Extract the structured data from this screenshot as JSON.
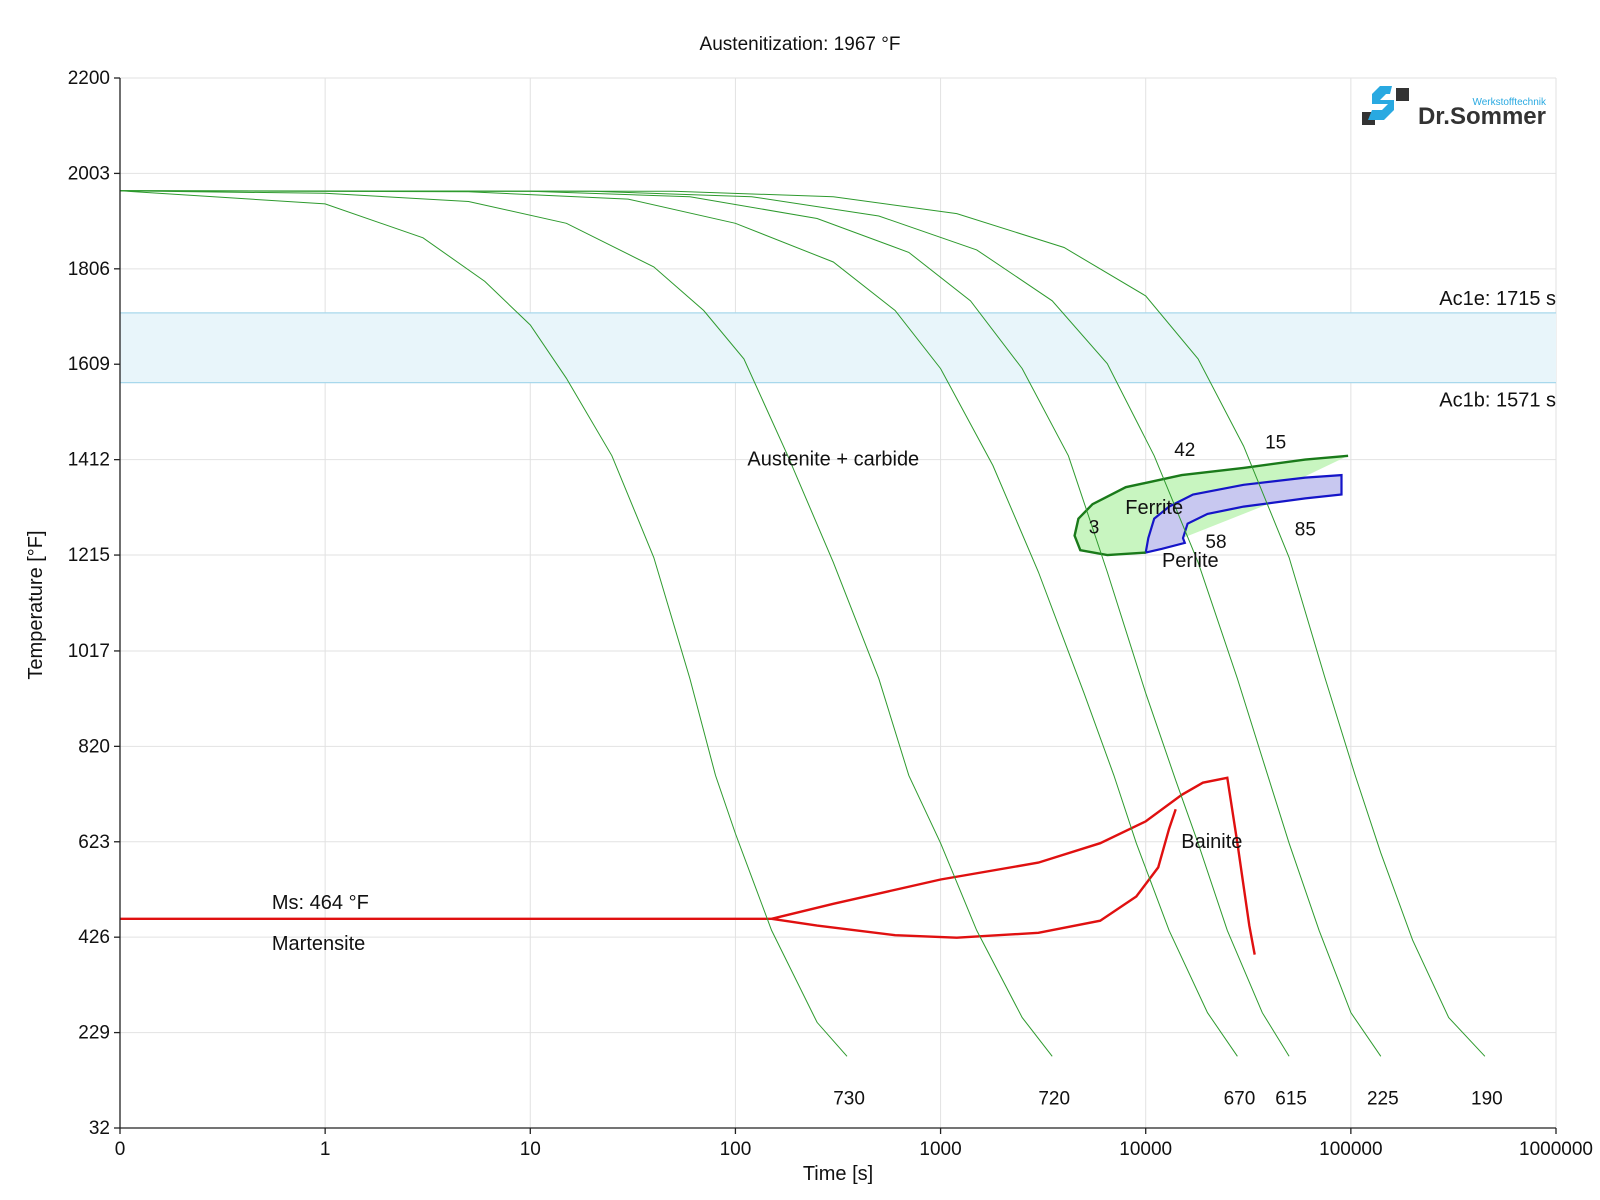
{
  "chart_data": {
    "type": "line",
    "title": "Austenitization: 1967 °F",
    "xlabel": "Time [s]",
    "ylabel": "Temperature [°F]",
    "x_scale": "log",
    "x_ticks": [
      {
        "value": 0.1,
        "label": "0"
      },
      {
        "value": 1,
        "label": "1"
      },
      {
        "value": 10,
        "label": "10"
      },
      {
        "value": 100,
        "label": "100"
      },
      {
        "value": 1000,
        "label": "1000"
      },
      {
        "value": 10000,
        "label": "10000"
      },
      {
        "value": 100000,
        "label": "100000"
      },
      {
        "value": 1000000,
        "label": "1000000"
      }
    ],
    "xlim": [
      0.1,
      1000000
    ],
    "ylim": [
      32,
      2200
    ],
    "y_ticks": [
      32,
      229,
      426,
      623,
      820,
      1017,
      1215,
      1412,
      1609,
      1806,
      2003,
      2200
    ],
    "grid": true,
    "logo": {
      "text": "Dr.Sommer",
      "subtext": "Werkstofftechnik",
      "colors": [
        "#29a9e1",
        "#333333"
      ]
    },
    "colors": {
      "cooling": "#2e9a2e",
      "ferrite": "#1a7a1a",
      "ferrite_fill": "#c8f5c0",
      "perlite": "#1515c8",
      "perlite_fill": "#c8c8f0",
      "bainite": "#e01010",
      "martensite": "#e01010",
      "ac_band": "#e8f5fa",
      "ac_line": "#a8d8ec"
    },
    "ac_band": {
      "ac1e": {
        "value": 1715,
        "label": "Ac1e: 1715 s"
      },
      "ac1b": {
        "value": 1571,
        "label": "Ac1b: 1571 s"
      }
    },
    "ms": {
      "value": 464,
      "label": "Ms: 464 °F"
    },
    "cooling_curves": [
      {
        "end_label": "730",
        "points": [
          [
            0.1,
            1967
          ],
          [
            1,
            1940
          ],
          [
            3,
            1870
          ],
          [
            6,
            1780
          ],
          [
            10,
            1690
          ],
          [
            15,
            1580
          ],
          [
            25,
            1420
          ],
          [
            40,
            1210
          ],
          [
            60,
            960
          ],
          [
            80,
            760
          ],
          [
            100,
            640
          ],
          [
            150,
            440
          ],
          [
            250,
            250
          ],
          [
            350,
            180
          ]
        ]
      },
      {
        "end_label": "720",
        "points": [
          [
            0.1,
            1967
          ],
          [
            1,
            1962
          ],
          [
            5,
            1945
          ],
          [
            15,
            1900
          ],
          [
            40,
            1810
          ],
          [
            70,
            1720
          ],
          [
            110,
            1620
          ],
          [
            180,
            1420
          ],
          [
            300,
            1200
          ],
          [
            500,
            960
          ],
          [
            700,
            760
          ],
          [
            1000,
            620
          ],
          [
            1500,
            440
          ],
          [
            2500,
            260
          ],
          [
            3500,
            180
          ]
        ]
      },
      {
        "end_label": "670",
        "points": [
          [
            0.1,
            1967
          ],
          [
            5,
            1965
          ],
          [
            30,
            1950
          ],
          [
            100,
            1900
          ],
          [
            300,
            1820
          ],
          [
            600,
            1720
          ],
          [
            1000,
            1600
          ],
          [
            1800,
            1400
          ],
          [
            3000,
            1180
          ],
          [
            5000,
            930
          ],
          [
            7000,
            760
          ],
          [
            9000,
            620
          ],
          [
            13000,
            440
          ],
          [
            20000,
            270
          ],
          [
            28000,
            180
          ]
        ]
      },
      {
        "end_label": "615",
        "points": [
          [
            0.1,
            1967
          ],
          [
            10,
            1966
          ],
          [
            60,
            1955
          ],
          [
            250,
            1910
          ],
          [
            700,
            1840
          ],
          [
            1400,
            1740
          ],
          [
            2500,
            1600
          ],
          [
            4200,
            1420
          ],
          [
            6500,
            1180
          ],
          [
            10000,
            930
          ],
          [
            14000,
            750
          ],
          [
            18000,
            620
          ],
          [
            25000,
            440
          ],
          [
            37000,
            270
          ],
          [
            50000,
            180
          ]
        ]
      },
      {
        "end_label": "225",
        "points": [
          [
            0.1,
            1967
          ],
          [
            20,
            1966
          ],
          [
            120,
            1955
          ],
          [
            500,
            1915
          ],
          [
            1500,
            1845
          ],
          [
            3500,
            1740
          ],
          [
            6500,
            1610
          ],
          [
            11000,
            1420
          ],
          [
            18000,
            1200
          ],
          [
            28000,
            960
          ],
          [
            38000,
            780
          ],
          [
            50000,
            620
          ],
          [
            70000,
            440
          ],
          [
            100000,
            270
          ],
          [
            140000,
            180
          ]
        ]
      },
      {
        "end_label": "190",
        "points": [
          [
            0.1,
            1967
          ],
          [
            50,
            1966
          ],
          [
            300,
            1955
          ],
          [
            1200,
            1920
          ],
          [
            4000,
            1850
          ],
          [
            10000,
            1750
          ],
          [
            18000,
            1620
          ],
          [
            30000,
            1440
          ],
          [
            50000,
            1210
          ],
          [
            75000,
            960
          ],
          [
            105000,
            760
          ],
          [
            140000,
            600
          ],
          [
            200000,
            420
          ],
          [
            300000,
            260
          ],
          [
            450000,
            180
          ]
        ]
      }
    ],
    "curve_labels": [
      {
        "text": "42",
        "x": 15500,
        "y": 1420
      },
      {
        "text": "15",
        "x": 43000,
        "y": 1435
      },
      {
        "text": "3",
        "x": 5600,
        "y": 1260
      },
      {
        "text": "58",
        "x": 22000,
        "y": 1230
      },
      {
        "text": "85",
        "x": 60000,
        "y": 1255
      }
    ],
    "regions": {
      "ferrite": {
        "label": "Ferrite",
        "label_at": [
          11000,
          1300
        ],
        "points": [
          [
            97000,
            1420
          ],
          [
            60000,
            1412
          ],
          [
            30000,
            1395
          ],
          [
            15000,
            1380
          ],
          [
            8000,
            1355
          ],
          [
            5500,
            1320
          ],
          [
            4700,
            1290
          ],
          [
            4500,
            1255
          ],
          [
            4800,
            1225
          ],
          [
            6500,
            1215
          ],
          [
            10000,
            1220
          ]
        ],
        "closure": [
          [
            10000,
            1220
          ],
          [
            11500,
            1290
          ],
          [
            13500,
            1315
          ],
          [
            17000,
            1340
          ],
          [
            30000,
            1360
          ],
          [
            60000,
            1375
          ],
          [
            90000,
            1380
          ]
        ]
      },
      "perlite": {
        "label": "Perlite",
        "label_at": [
          16500,
          1190
        ],
        "points": [
          [
            10000,
            1220
          ],
          [
            10300,
            1250
          ],
          [
            11000,
            1290
          ],
          [
            13000,
            1315
          ],
          [
            17000,
            1340
          ],
          [
            30000,
            1360
          ],
          [
            60000,
            1375
          ],
          [
            90000,
            1380
          ],
          [
            90000,
            1340
          ],
          [
            60000,
            1332
          ],
          [
            30000,
            1315
          ],
          [
            20000,
            1300
          ],
          [
            16000,
            1280
          ],
          [
            15200,
            1250
          ],
          [
            15500,
            1240
          ],
          [
            12000,
            1228
          ],
          [
            10000,
            1220
          ]
        ]
      },
      "bainite": {
        "label": "Bainite",
        "label_at": [
          21000,
          610
        ],
        "points": [
          [
            150,
            464
          ],
          [
            300,
            495
          ],
          [
            1000,
            545
          ],
          [
            3000,
            580
          ],
          [
            6000,
            620
          ],
          [
            10000,
            665
          ],
          [
            15000,
            720
          ],
          [
            19000,
            745
          ],
          [
            25000,
            755
          ],
          [
            28000,
            620
          ],
          [
            32000,
            450
          ],
          [
            34000,
            390
          ]
        ],
        "lower_points": [
          [
            150,
            464
          ],
          [
            250,
            450
          ],
          [
            600,
            430
          ],
          [
            1200,
            425
          ],
          [
            3000,
            435
          ],
          [
            6000,
            460
          ],
          [
            9000,
            510
          ],
          [
            11500,
            570
          ],
          [
            13000,
            650
          ],
          [
            14000,
            690
          ]
        ]
      },
      "austenite": {
        "label": "Austenite + carbide",
        "label_at": [
          300,
          1400
        ]
      },
      "martensite": {
        "label": "Martensite",
        "label_at": [
          0.55,
          400
        ]
      }
    }
  }
}
